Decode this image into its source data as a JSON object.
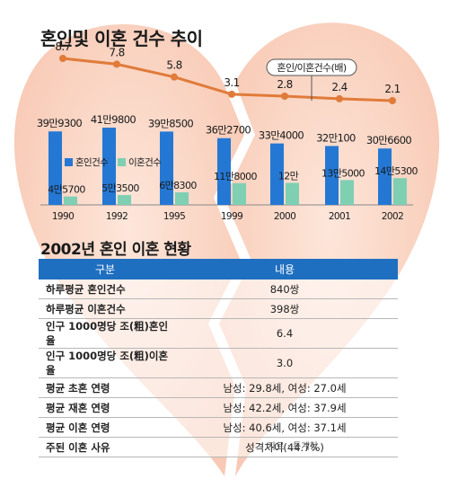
{
  "title": "혼인및 이혼 건수 추이",
  "chart_data": {
    "type": "bar",
    "categories": [
      "1990",
      "1992",
      "1995",
      "1999",
      "2000",
      "2001",
      "2002"
    ],
    "series": [
      {
        "name": "혼인건수",
        "values": [
          399300,
          419800,
          398500,
          362700,
          334000,
          320100,
          306600
        ],
        "labels": [
          "39만9300",
          "41만9800",
          "39만8500",
          "36만2700",
          "33만4000",
          "32만100",
          "30만6600"
        ]
      },
      {
        "name": "이혼건수",
        "values": [
          45700,
          53500,
          68300,
          118000,
          120000,
          135000,
          145300
        ],
        "labels": [
          "4만5700",
          "5만3500",
          "6만8300",
          "11만8000",
          "12만",
          "13만5000",
          "14만5300"
        ]
      }
    ],
    "line": {
      "name": "혼인/이혼건수(배)",
      "values": [
        8.7,
        7.8,
        5.8,
        3.1,
        2.8,
        2.4,
        2.1
      ],
      "labels": [
        "8.7",
        "7.8",
        "5.8",
        "3.1",
        "2.8",
        "2.4",
        "2.1"
      ]
    },
    "legend_position": "left, between bars",
    "colors": {
      "marriage": "#2478d4",
      "divorce": "#7fcfb3",
      "line": "#e07b3a"
    }
  },
  "table": {
    "title": "2002년 혼인 이혼 현황",
    "headers": [
      "구분",
      "내용"
    ],
    "rows": [
      {
        "label": "하루평균 혼인건수",
        "value": "840쌍"
      },
      {
        "label": "하루평균 이혼건수",
        "value": "398쌍"
      },
      {
        "label": "인구 1000명당 조(粗)혼인율",
        "value": "6.4"
      },
      {
        "label": "인구 1000명당 조(粗)이혼율",
        "value": "3.0"
      },
      {
        "label": "평균 초혼 연령",
        "value": "남성: 29.8세, 여성: 27.0세"
      },
      {
        "label": "평균 재혼 연령",
        "value": "남성: 42.2세, 여성: 37.9세"
      },
      {
        "label": "평균 이혼 연령",
        "value": "남성: 40.6세, 여성: 37.1세"
      },
      {
        "label": "주된 이혼 사유",
        "value": "성격차이(44.7%)"
      }
    ]
  },
  "source": "자료 : 통계청"
}
